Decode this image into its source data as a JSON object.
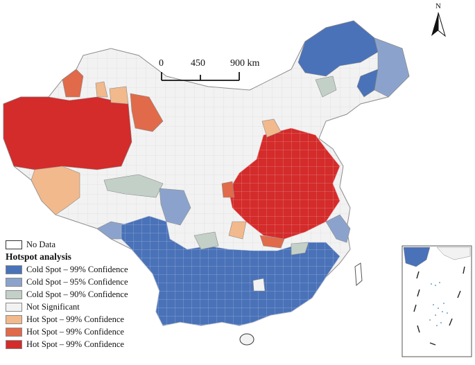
{
  "scale_bar": {
    "labels": [
      "0",
      "450",
      "900 km"
    ]
  },
  "north_arrow": {
    "label": "N"
  },
  "legend": {
    "no_data_label": "No Data",
    "title": "Hotspot analysis",
    "items": [
      {
        "label": "Cold Spot – 99% Confidence",
        "color": "#4a72b8"
      },
      {
        "label": "Cold Spot – 95% Confidence",
        "color": "#8ba3cc"
      },
      {
        "label": "Cold Spot – 90% Confidence",
        "color": "#c3d0c8"
      },
      {
        "label": "Not Significant",
        "color": "#f2f2f2"
      },
      {
        "label": "Hot Spot – 99% Confidence",
        "color": "#f2b98c"
      },
      {
        "label": "Hot Spot – 99% Confidence",
        "color": "#e06a4a"
      },
      {
        "label": "Hot Spot – 99% Confidence",
        "color": "#d42b2b"
      }
    ]
  },
  "colors": {
    "cold99": "#4a72b8",
    "cold95": "#8ba3cc",
    "cold90": "#c3d0c8",
    "notsig": "#f2f2f2",
    "hot1": "#f2b98c",
    "hot2": "#e06a4a",
    "hot3": "#d42b2b",
    "border": "#9a9a9a"
  }
}
